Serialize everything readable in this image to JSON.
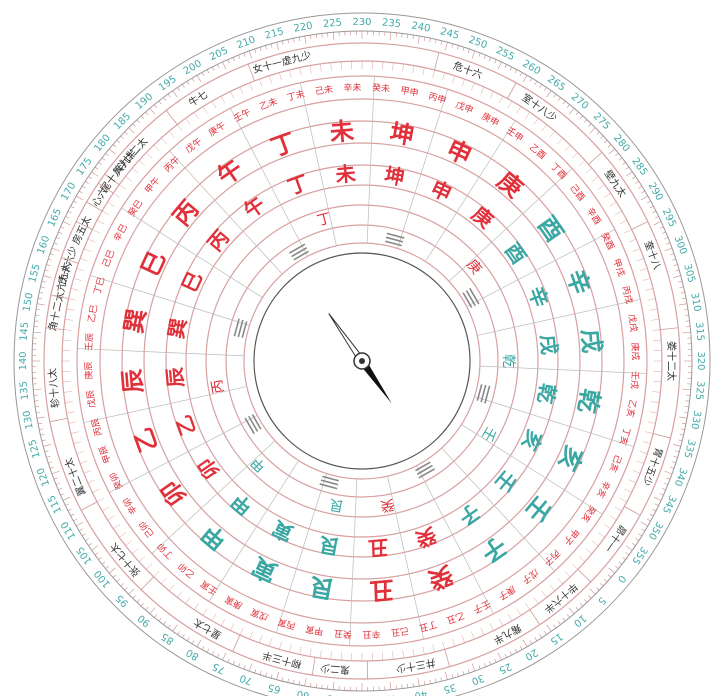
{
  "colors": {
    "red": "#e0303a",
    "teal": "#3aa7a3",
    "ring": "#d8a0a0",
    "grid": "#bbbbbb",
    "needle": "#111111"
  },
  "degree_labels": [
    "0",
    "5",
    "10",
    "15",
    "20",
    "25",
    "30",
    "35",
    "40",
    "45",
    "50",
    "55",
    "60",
    "65",
    "70",
    "75",
    "80",
    "85",
    "90",
    "95",
    "100",
    "105",
    "110",
    "115",
    "120",
    "125",
    "130",
    "135",
    "140",
    "145",
    "150",
    "155",
    "160",
    "165",
    "170",
    "175",
    "180",
    "185",
    "190",
    "195",
    "200",
    "205",
    "210",
    "215",
    "220",
    "225",
    "230",
    "235",
    "240",
    "245",
    "250",
    "255",
    "260",
    "265",
    "270",
    "275",
    "280",
    "285",
    "290",
    "295",
    "300",
    "305",
    "310",
    "315",
    "320",
    "325",
    "330",
    "335",
    "340",
    "345",
    "350",
    "355"
  ],
  "mansions": [
    {
      "text": "斗廿二太",
      "ang": 182
    },
    {
      "text": "牛七",
      "ang": 198
    },
    {
      "text": "女十一虚九少",
      "ang": 215
    },
    {
      "text": "危十六",
      "ang": 250
    },
    {
      "text": "室十八少",
      "ang": 265
    },
    {
      "text": "壁九太",
      "ang": 285
    },
    {
      "text": "奎十八",
      "ang": 300
    },
    {
      "text": "娄十二太",
      "ang": 320
    },
    {
      "text": "胃十五少",
      "ang": 340
    },
    {
      "text": "昴十一",
      "ang": 355
    },
    {
      "text": "毕十六半",
      "ang": 10
    },
    {
      "text": "觜九半",
      "ang": 22
    },
    {
      "text": "井三十少",
      "ang": 40
    },
    {
      "text": "鬼二少",
      "ang": 55
    },
    {
      "text": "柳十三半",
      "ang": 65
    },
    {
      "text": "星七太",
      "ang": 80
    },
    {
      "text": "张十七太",
      "ang": 100
    },
    {
      "text": "翼二十太",
      "ang": 118
    },
    {
      "text": "轸十八太",
      "ang": 135
    },
    {
      "text": "角十二太亢九太",
      "ang": 152
    },
    {
      "text": "氐十六少",
      "ang": 158
    },
    {
      "text": "房五太",
      "ang": 165
    },
    {
      "text": "心六",
      "ang": 172
    },
    {
      "text": "尾十八",
      "ang": 176
    },
    {
      "text": "箕九半",
      "ang": 180
    }
  ],
  "mountains": [
    {
      "text": "壬",
      "ang": 0,
      "c": "teal"
    },
    {
      "text": "子",
      "ang": 15,
      "c": "teal"
    },
    {
      "text": "癸",
      "ang": 30,
      "c": "red"
    },
    {
      "text": "丑",
      "ang": 45,
      "c": "red"
    },
    {
      "text": "艮",
      "ang": 60,
      "c": "teal"
    },
    {
      "text": "寅",
      "ang": 75,
      "c": "teal"
    },
    {
      "text": "甲",
      "ang": 90,
      "c": "teal"
    },
    {
      "text": "卯",
      "ang": 105,
      "c": "red"
    },
    {
      "text": "乙",
      "ang": 120,
      "c": "red"
    },
    {
      "text": "辰",
      "ang": 135,
      "c": "red"
    },
    {
      "text": "巽",
      "ang": 150,
      "c": "red"
    },
    {
      "text": "巳",
      "ang": 165,
      "c": "red"
    },
    {
      "text": "丙",
      "ang": 180,
      "c": "red"
    },
    {
      "text": "午",
      "ang": 195,
      "c": "red"
    },
    {
      "text": "丁",
      "ang": 210,
      "c": "red"
    },
    {
      "text": "未",
      "ang": 225,
      "c": "red"
    },
    {
      "text": "坤",
      "ang": 240,
      "c": "red"
    },
    {
      "text": "申",
      "ang": 255,
      "c": "red"
    },
    {
      "text": "庚",
      "ang": 270,
      "c": "red"
    },
    {
      "text": "酉",
      "ang": 285,
      "c": "teal"
    },
    {
      "text": "辛",
      "ang": 300,
      "c": "teal"
    },
    {
      "text": "戌",
      "ang": 315,
      "c": "teal"
    },
    {
      "text": "乾",
      "ang": 330,
      "c": "teal"
    },
    {
      "text": "亥",
      "ang": 345,
      "c": "teal"
    }
  ],
  "stems_ring": [
    "甲子",
    "丙子",
    "戊子",
    "庚子",
    "壬子",
    "乙丑",
    "丁丑",
    "己丑",
    "辛丑",
    "癸丑",
    "甲寅",
    "丙寅",
    "戊寅",
    "庚寅",
    "壬寅",
    "乙卯",
    "丁卯",
    "己卯",
    "辛卯",
    "癸卯",
    "甲辰",
    "丙辰",
    "戊辰",
    "庚辰",
    "壬辰",
    "乙巳",
    "丁巳",
    "己巳",
    "辛巳",
    "癸巳",
    "甲午",
    "丙午",
    "戊午",
    "庚午",
    "壬午",
    "乙未",
    "丁未",
    "己未",
    "辛未",
    "癸未",
    "甲申",
    "丙申",
    "戊申",
    "庚申",
    "壬申",
    "乙酉",
    "丁酉",
    "己酉",
    "辛酉",
    "癸酉",
    "甲戌",
    "丙戌",
    "戊戌",
    "庚戌",
    "壬戌",
    "乙亥",
    "丁亥",
    "己亥",
    "辛亥",
    "癸亥"
  ],
  "inner_labels": [
    {
      "text": "甲",
      "ang": 95,
      "c": "teal"
    },
    {
      "text": "丙",
      "ang": 130,
      "c": "red"
    },
    {
      "text": "庚",
      "ang": 280,
      "c": "red"
    },
    {
      "text": "壬",
      "ang": 350,
      "c": "teal"
    },
    {
      "text": "癸",
      "ang": 40,
      "c": "red"
    },
    {
      "text": "艮",
      "ang": 60,
      "c": "teal"
    },
    {
      "text": "丁",
      "ang": 215,
      "c": "red"
    },
    {
      "text": "乾",
      "ang": 320,
      "c": "teal"
    }
  ],
  "needle": {
    "angle": -35
  }
}
